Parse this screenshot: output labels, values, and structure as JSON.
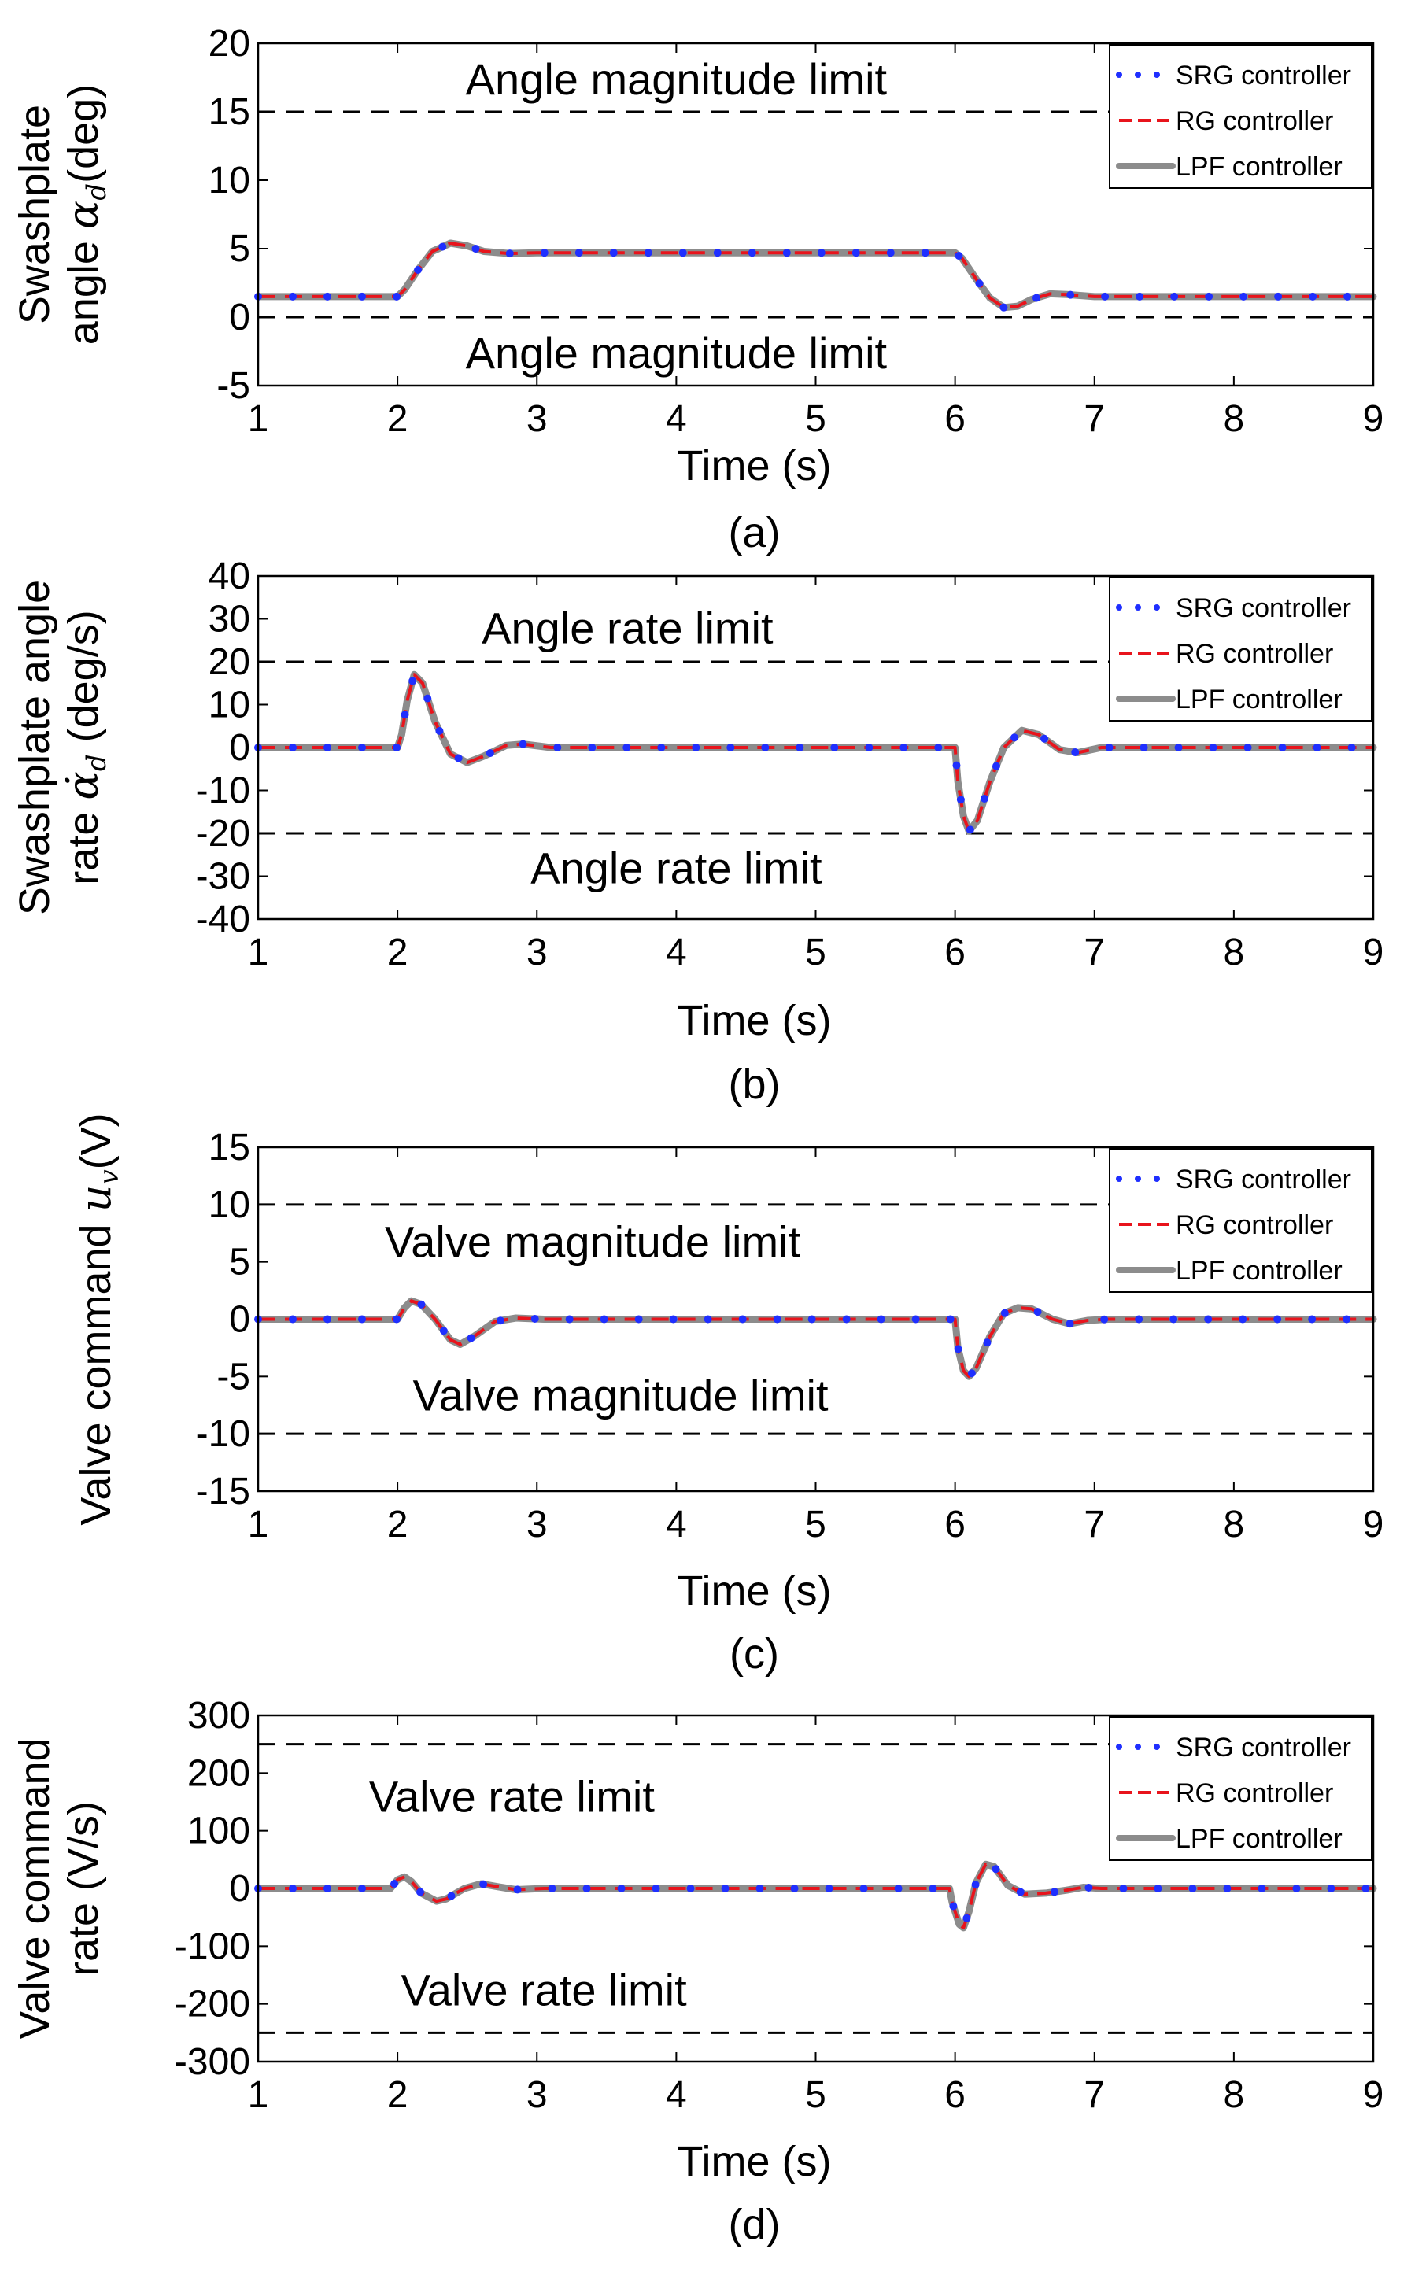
{
  "chart_data": [
    {
      "type": "line",
      "panel_label": "(a)",
      "xlabel": "Time (s)",
      "ylabel_lines": [
        "Swashplate",
        "angle ",
        "(deg)"
      ],
      "ylabel_symbol": "α",
      "ylabel_subscript": "d",
      "xlim": [
        1,
        9
      ],
      "ylim": [
        -5,
        20
      ],
      "xticks": [
        1,
        2,
        3,
        4,
        5,
        6,
        7,
        8,
        9
      ],
      "yticks": [
        -5,
        0,
        5,
        10,
        15,
        20
      ],
      "limit_lines": [
        15,
        0
      ],
      "annotations": [
        {
          "text": "Angle magnitude limit",
          "x": 4.0,
          "y": 17.4
        },
        {
          "text": "Angle magnitude limit",
          "x": 4.0,
          "y": -2.6
        }
      ],
      "legend": [
        "SRG controller",
        "RG controller",
        "LPF controller"
      ],
      "series_points": [
        [
          1,
          1.5
        ],
        [
          2,
          1.5
        ],
        [
          2.05,
          2.0
        ],
        [
          2.15,
          3.5
        ],
        [
          2.25,
          4.8
        ],
        [
          2.38,
          5.4
        ],
        [
          2.5,
          5.2
        ],
        [
          2.62,
          4.8
        ],
        [
          2.8,
          4.65
        ],
        [
          3,
          4.7
        ],
        [
          4,
          4.7
        ],
        [
          5,
          4.7
        ],
        [
          6,
          4.7
        ],
        [
          6.05,
          4.3
        ],
        [
          6.15,
          2.8
        ],
        [
          6.25,
          1.4
        ],
        [
          6.35,
          0.7
        ],
        [
          6.45,
          0.8
        ],
        [
          6.55,
          1.3
        ],
        [
          6.68,
          1.7
        ],
        [
          6.8,
          1.65
        ],
        [
          7,
          1.5
        ],
        [
          8,
          1.5
        ],
        [
          9,
          1.5
        ]
      ],
      "series": [
        {
          "name": "SRG controller",
          "color": "#1f2fff",
          "style": "dotted"
        },
        {
          "name": "RG controller",
          "color": "#e8141c",
          "style": "dashed"
        },
        {
          "name": "LPF controller",
          "color": "#8c8c8c",
          "style": "solid"
        }
      ]
    },
    {
      "type": "line",
      "panel_label": "(b)",
      "xlabel": "Time (s)",
      "ylabel_lines": [
        "Swashplate angle",
        "rate ",
        " (deg/s)"
      ],
      "ylabel_symbol": "α̇",
      "ylabel_subscript": "d",
      "xlim": [
        1,
        9
      ],
      "ylim": [
        -40,
        40
      ],
      "xticks": [
        1,
        2,
        3,
        4,
        5,
        6,
        7,
        8,
        9
      ],
      "yticks": [
        -40,
        -30,
        -20,
        -10,
        0,
        10,
        20,
        30,
        40
      ],
      "limit_lines": [
        20,
        -20
      ],
      "annotations": [
        {
          "text": "Angle rate limit",
          "x": 3.65,
          "y": 28
        },
        {
          "text": "Angle rate limit",
          "x": 4.0,
          "y": -28
        }
      ],
      "legend": [
        "SRG controller",
        "RG controller",
        "LPF controller"
      ],
      "series_points": [
        [
          1,
          0
        ],
        [
          2,
          0
        ],
        [
          2.03,
          3
        ],
        [
          2.07,
          11
        ],
        [
          2.12,
          17
        ],
        [
          2.18,
          15
        ],
        [
          2.27,
          6
        ],
        [
          2.38,
          -1.5
        ],
        [
          2.5,
          -3.5
        ],
        [
          2.62,
          -2
        ],
        [
          2.78,
          0.5
        ],
        [
          2.9,
          0.8
        ],
        [
          3.1,
          0
        ],
        [
          4,
          0
        ],
        [
          5,
          0
        ],
        [
          6,
          0
        ],
        [
          6.02,
          -8
        ],
        [
          6.06,
          -16
        ],
        [
          6.1,
          -19.5
        ],
        [
          6.16,
          -17
        ],
        [
          6.25,
          -8
        ],
        [
          6.35,
          0
        ],
        [
          6.48,
          4
        ],
        [
          6.6,
          3
        ],
        [
          6.75,
          -0.5
        ],
        [
          6.88,
          -1.2
        ],
        [
          7.05,
          0
        ],
        [
          8,
          0
        ],
        [
          9,
          0
        ]
      ],
      "series": [
        {
          "name": "SRG controller",
          "color": "#1f2fff",
          "style": "dotted"
        },
        {
          "name": "RG controller",
          "color": "#e8141c",
          "style": "dashed"
        },
        {
          "name": "LPF controller",
          "color": "#8c8c8c",
          "style": "solid"
        }
      ]
    },
    {
      "type": "line",
      "panel_label": "(c)",
      "xlabel": "Time (s)",
      "ylabel_lines": [
        "Valve command ",
        "(V)"
      ],
      "ylabel_symbol": "u",
      "ylabel_subscript": "v",
      "xlim": [
        1,
        9
      ],
      "ylim": [
        -15,
        15
      ],
      "xticks": [
        1,
        2,
        3,
        4,
        5,
        6,
        7,
        8,
        9
      ],
      "yticks": [
        -15,
        -10,
        -5,
        0,
        5,
        10,
        15
      ],
      "limit_lines": [
        10,
        -10
      ],
      "annotations": [
        {
          "text": "Valve magnitude limit",
          "x": 3.4,
          "y": 6.8
        },
        {
          "text": "Valve magnitude limit",
          "x": 3.6,
          "y": -6.6
        }
      ],
      "legend": [
        "SRG controller",
        "RG controller",
        "LPF controller"
      ],
      "series_points": [
        [
          1,
          0
        ],
        [
          2,
          0
        ],
        [
          2.05,
          1.0
        ],
        [
          2.1,
          1.6
        ],
        [
          2.17,
          1.3
        ],
        [
          2.27,
          0
        ],
        [
          2.38,
          -1.8
        ],
        [
          2.45,
          -2.2
        ],
        [
          2.55,
          -1.5
        ],
        [
          2.7,
          -0.2
        ],
        [
          2.85,
          0.1
        ],
        [
          3.05,
          0
        ],
        [
          4,
          0
        ],
        [
          5,
          0
        ],
        [
          6,
          0
        ],
        [
          6.02,
          -2.5
        ],
        [
          6.06,
          -4.5
        ],
        [
          6.1,
          -5.0
        ],
        [
          6.15,
          -4.3
        ],
        [
          6.25,
          -1.5
        ],
        [
          6.35,
          0.5
        ],
        [
          6.45,
          1.0
        ],
        [
          6.55,
          0.9
        ],
        [
          6.7,
          0
        ],
        [
          6.82,
          -0.4
        ],
        [
          6.95,
          -0.1
        ],
        [
          7.1,
          0
        ],
        [
          8,
          0
        ],
        [
          9,
          0
        ]
      ],
      "series": [
        {
          "name": "SRG controller",
          "color": "#1f2fff",
          "style": "dotted"
        },
        {
          "name": "RG controller",
          "color": "#e8141c",
          "style": "dashed"
        },
        {
          "name": "LPF controller",
          "color": "#8c8c8c",
          "style": "solid"
        }
      ]
    },
    {
      "type": "line",
      "panel_label": "(d)",
      "xlabel": "Time (s)",
      "ylabel_lines": [
        "Valve command",
        "rate (V/s)"
      ],
      "xlim": [
        1,
        9
      ],
      "ylim": [
        -300,
        300
      ],
      "xticks": [
        1,
        2,
        3,
        4,
        5,
        6,
        7,
        8,
        9
      ],
      "yticks": [
        -300,
        -200,
        -100,
        0,
        100,
        200,
        300
      ],
      "limit_lines": [
        250,
        -250
      ],
      "annotations": [
        {
          "text": "Valve rate limit",
          "x": 2.82,
          "y": 160
        },
        {
          "text": "Valve rate limit",
          "x": 3.05,
          "y": -175
        }
      ],
      "legend": [
        "SRG controller",
        "RG controller",
        "LPF controller"
      ],
      "series_points": [
        [
          1,
          0
        ],
        [
          1.95,
          0
        ],
        [
          2,
          15
        ],
        [
          2.05,
          20
        ],
        [
          2.1,
          12
        ],
        [
          2.17,
          -8
        ],
        [
          2.28,
          -22
        ],
        [
          2.35,
          -18
        ],
        [
          2.48,
          0
        ],
        [
          2.6,
          8
        ],
        [
          2.72,
          3
        ],
        [
          2.85,
          -2
        ],
        [
          3.05,
          0
        ],
        [
          4,
          0
        ],
        [
          5,
          0
        ],
        [
          5.96,
          0
        ],
        [
          5.98,
          -25
        ],
        [
          6.03,
          -62
        ],
        [
          6.06,
          -68
        ],
        [
          6.1,
          -40
        ],
        [
          6.15,
          10
        ],
        [
          6.22,
          42
        ],
        [
          6.28,
          38
        ],
        [
          6.38,
          5
        ],
        [
          6.5,
          -10
        ],
        [
          6.65,
          -8
        ],
        [
          6.8,
          -3
        ],
        [
          6.92,
          2
        ],
        [
          7.05,
          0
        ],
        [
          8,
          0
        ],
        [
          9,
          0
        ]
      ],
      "series": [
        {
          "name": "SRG controller",
          "color": "#1f2fff",
          "style": "dotted"
        },
        {
          "name": "RG controller",
          "color": "#e8141c",
          "style": "dashed"
        },
        {
          "name": "LPF controller",
          "color": "#8c8c8c",
          "style": "solid"
        }
      ]
    }
  ]
}
